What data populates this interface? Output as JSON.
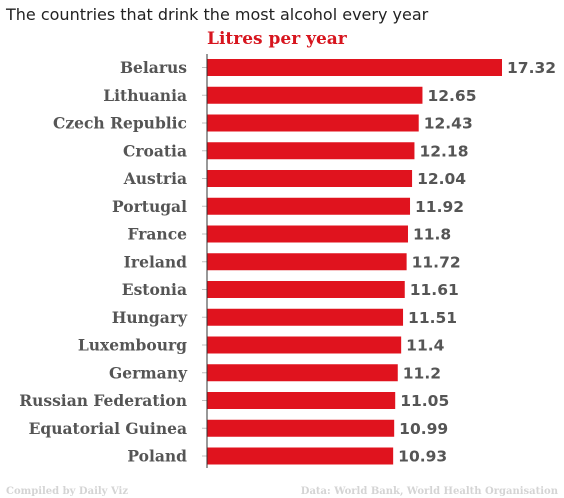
{
  "colors": {
    "bar": "#e0131e",
    "subtitle": "#d7151e",
    "label": "#555555",
    "axis": "#333333",
    "tick": "#bfbfbf",
    "footer": "#d4d4d4"
  },
  "chart_data": {
    "type": "bar",
    "orientation": "horizontal",
    "title": "The countries that drink the most alcohol every year",
    "subtitle": "Litres per year",
    "categories": [
      "Belarus",
      "Lithuania",
      "Czech Republic",
      "Croatia",
      "Austria",
      "Portugal",
      "France",
      "Ireland",
      "Estonia",
      "Hungary",
      "Luxembourg",
      "Germany",
      "Russian Federation",
      "Equatorial Guinea",
      "Poland"
    ],
    "value_labels": [
      "17.32",
      "12.65",
      "12.43",
      "12.18",
      "12.04",
      "11.92",
      "11.8",
      "11.72",
      "11.61",
      "11.51",
      "11.4",
      "11.2",
      "11.05",
      "10.99",
      "10.93"
    ],
    "values": [
      17.32,
      12.65,
      12.43,
      12.18,
      12.04,
      11.92,
      11.8,
      11.72,
      11.61,
      11.51,
      11.4,
      11.2,
      11.05,
      10.99,
      10.93
    ],
    "xlim": [
      0,
      17.32
    ],
    "grid": false,
    "legend": "none",
    "footer_left": "Compiled by Daily Viz",
    "footer_right": "Data: World Bank, World Health Organisation"
  }
}
